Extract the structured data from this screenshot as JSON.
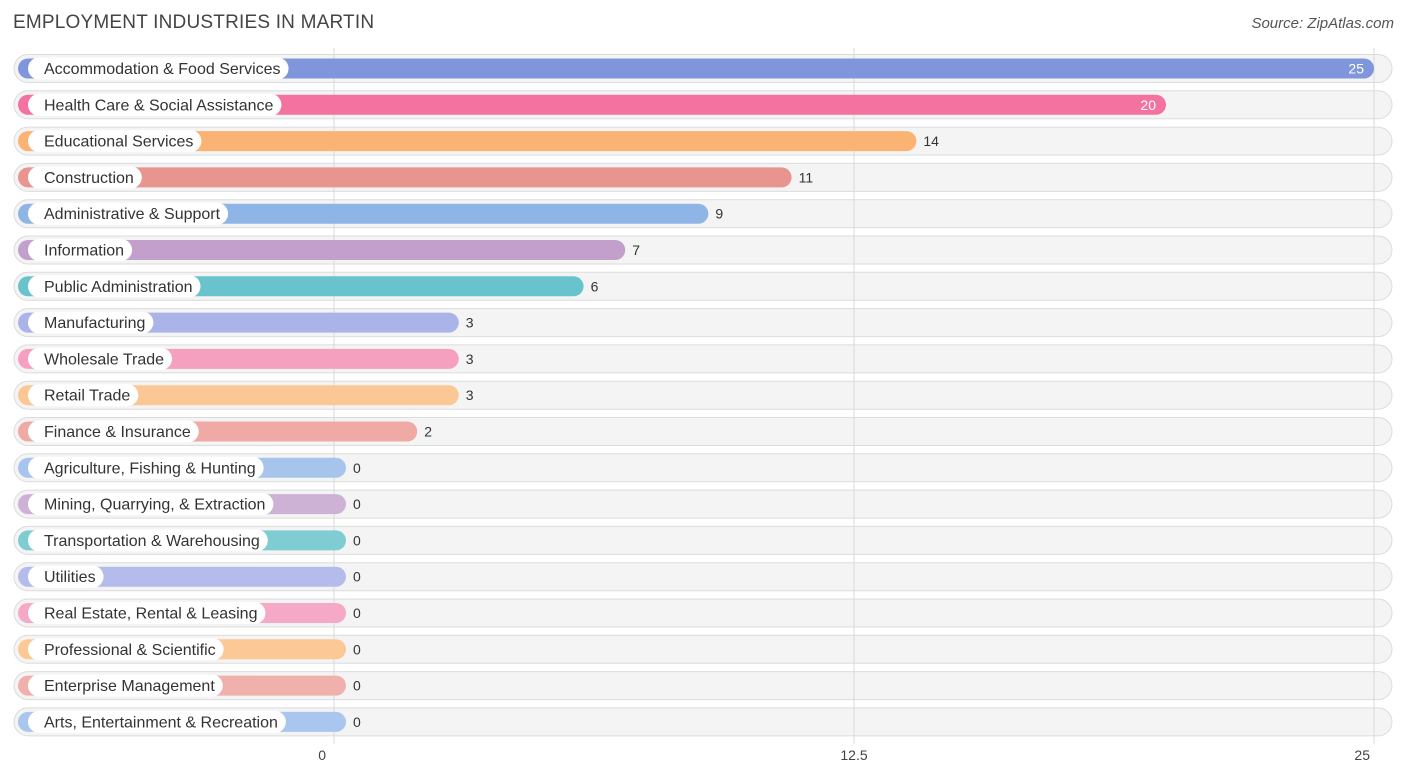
{
  "header": {
    "title": "EMPLOYMENT INDUSTRIES IN MARTIN",
    "source": "Source: ZipAtlas.com"
  },
  "chart_data": {
    "type": "bar",
    "orientation": "horizontal",
    "title": "EMPLOYMENT INDUSTRIES IN MARTIN",
    "categories": [
      "Accommodation & Food Services",
      "Health Care & Social Assistance",
      "Educational Services",
      "Construction",
      "Administrative & Support",
      "Information",
      "Public Administration",
      "Manufacturing",
      "Wholesale Trade",
      "Retail Trade",
      "Finance & Insurance",
      "Agriculture, Fishing & Hunting",
      "Mining, Quarrying, & Extraction",
      "Transportation & Warehousing",
      "Utilities",
      "Real Estate, Rental & Leasing",
      "Professional & Scientific",
      "Enterprise Management",
      "Arts, Entertainment & Recreation"
    ],
    "values": [
      25,
      20,
      14,
      11,
      9,
      7,
      6,
      3,
      3,
      3,
      2,
      0,
      0,
      0,
      0,
      0,
      0,
      0,
      0
    ],
    "colors": [
      "#7f96dc",
      "#f472a0",
      "#fbb373",
      "#e8958f",
      "#8fb4e6",
      "#c3a0cb",
      "#69c3cc",
      "#aab4e8",
      "#f6a0c0",
      "#fbc794",
      "#f0aaa6",
      "#a7c5ec",
      "#cdb2d6",
      "#7fcdd3",
      "#b4bcec",
      "#f6a9c6",
      "#fbc896",
      "#f0b1ad",
      "#a9c7ee"
    ],
    "xlim": [
      0,
      25
    ],
    "xticks": [
      "0",
      "12.5",
      "25"
    ],
    "xtick_values": [
      0,
      12.5,
      25
    ],
    "grid": true,
    "legend": "none"
  }
}
